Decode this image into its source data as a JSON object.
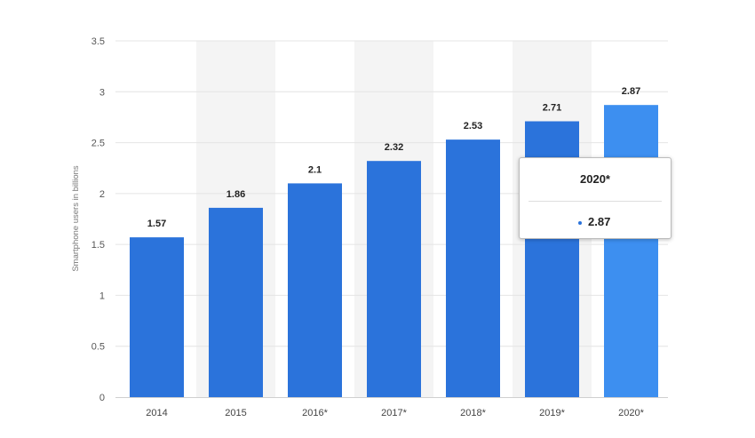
{
  "chart_data": {
    "type": "bar",
    "categories": [
      "2014",
      "2015",
      "2016*",
      "2017*",
      "2018*",
      "2019*",
      "2020*"
    ],
    "values": [
      1.57,
      1.86,
      2.1,
      2.32,
      2.53,
      2.71,
      2.87
    ],
    "value_labels": [
      "1.57",
      "1.86",
      "2.1",
      "2.32",
      "2.53",
      "2.71",
      "2.87"
    ],
    "ylabel": "Smartphone users in billions",
    "ylim": [
      0,
      3.5
    ],
    "yticks": [
      0,
      0.5,
      1,
      1.5,
      2,
      2.5,
      3,
      3.5
    ],
    "ytick_labels": [
      "0",
      "0.5",
      "1",
      "1.5",
      "2",
      "2.5",
      "3",
      "3.5"
    ],
    "grid": true,
    "highlighted_index": 6,
    "colors": {
      "bar": "#2b73db",
      "bar_highlight": "#3d8ff0",
      "band": "#f4f4f4",
      "grid": "#e4e4e4"
    }
  },
  "tooltip": {
    "title": "2020*",
    "value": "2.87"
  }
}
